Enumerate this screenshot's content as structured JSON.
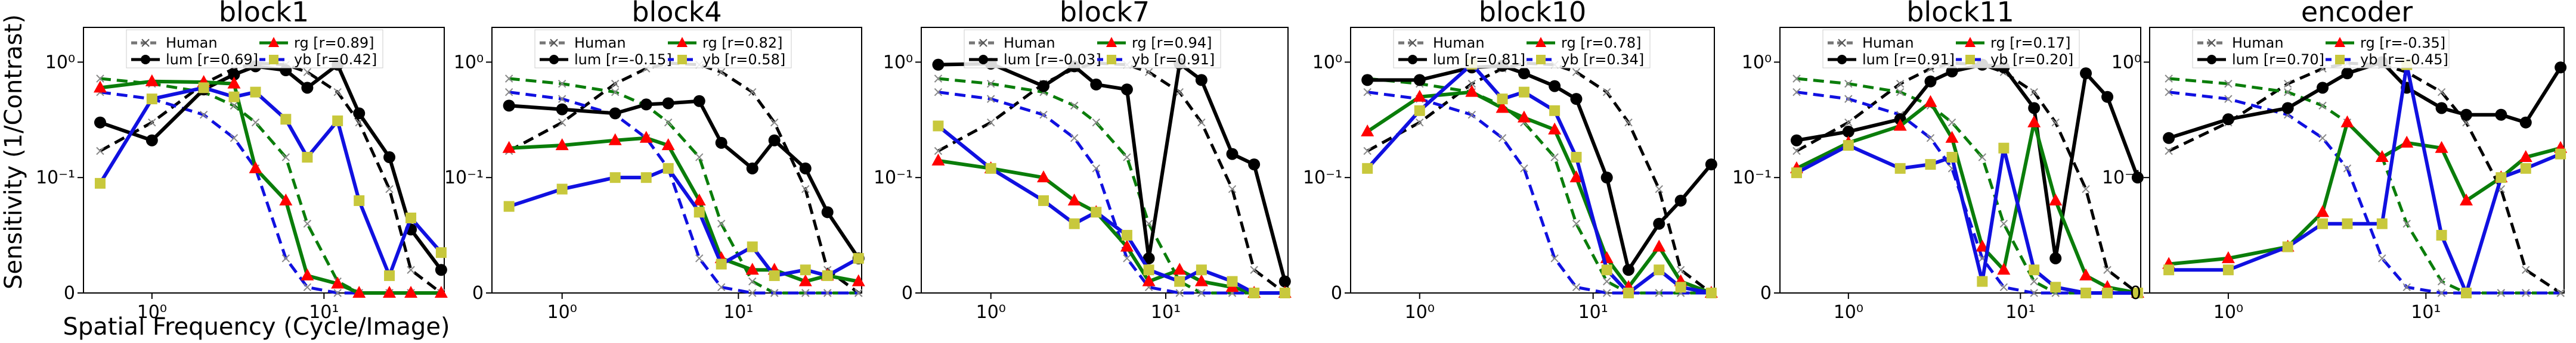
{
  "figure": {
    "ylabel": "Sensitivity (1/Contrast)",
    "xlabel": "Spatial Frequency (Cycle/Image)"
  },
  "colors": {
    "Human": "#777777",
    "lum": "#000000",
    "rg": "#0a7d0a",
    "yb": "#1010e0",
    "rg_marker": "#ff0000",
    "yb_marker": "#c8c83c",
    "human_lum": "#000000",
    "human_rg": "#0a7d0a",
    "human_yb": "#1010e0"
  },
  "chart_data": [
    {
      "type": "line",
      "title": "block1",
      "xscale": "log",
      "yscale": "symlog",
      "xlim": [
        0.4,
        50
      ],
      "ylim": [
        0,
        2
      ],
      "x": [
        0.5,
        1,
        2,
        3,
        4,
        6,
        8,
        12,
        16,
        24,
        32,
        48
      ],
      "series": [
        {
          "name": "lum",
          "r": "[r=0.69]",
          "values": [
            0.3,
            0.21,
            0.58,
            0.78,
            0.92,
            0.85,
            0.6,
            0.95,
            0.36,
            0.15,
            0.055,
            0.02
          ]
        },
        {
          "name": "rg",
          "r": "[r=0.89]",
          "values": [
            0.6,
            0.68,
            0.67,
            0.65,
            0.12,
            0.08,
            0.015,
            0.008,
            0.0,
            0.0,
            0.0,
            0.0
          ]
        },
        {
          "name": "yb",
          "r": "[r=0.42]",
          "values": [
            0.095,
            0.48,
            0.6,
            0.5,
            0.55,
            0.32,
            0.15,
            0.31,
            0.08,
            0.015,
            0.065,
            0.035
          ]
        }
      ],
      "human": {
        "label": "Human",
        "x": [
          0.5,
          1,
          2,
          3,
          4,
          6,
          8,
          12,
          16,
          24,
          32,
          48
        ],
        "lum": [
          0.17,
          0.3,
          0.65,
          0.88,
          0.98,
          0.95,
          0.82,
          0.55,
          0.3,
          0.09,
          0.02,
          0.0
        ],
        "rg": [
          0.72,
          0.65,
          0.55,
          0.42,
          0.3,
          0.15,
          0.06,
          0.01,
          0.0,
          0.0,
          0.0,
          0.0
        ],
        "yb": [
          0.55,
          0.48,
          0.35,
          0.22,
          0.12,
          0.03,
          0.005,
          0.0,
          0.0,
          0.0,
          0.0,
          0.0
        ]
      },
      "legend": {
        "position": "top",
        "entries": [
          "Human",
          "lum [r=0.69]",
          "rg [r=0.89]",
          "yb [r=0.42]"
        ]
      }
    },
    {
      "type": "line",
      "title": "block4",
      "xscale": "log",
      "yscale": "symlog",
      "xlim": [
        0.4,
        50
      ],
      "ylim": [
        0,
        2
      ],
      "x": [
        0.5,
        1,
        2,
        3,
        4,
        6,
        8,
        12,
        16,
        24,
        32,
        48
      ],
      "series": [
        {
          "name": "lum",
          "r": "[r=-0.15]",
          "values": [
            0.42,
            0.39,
            0.36,
            0.43,
            0.44,
            0.46,
            0.2,
            0.12,
            0.21,
            0.12,
            0.07,
            0.03
          ]
        },
        {
          "name": "rg",
          "r": "[r=0.82]",
          "values": [
            0.18,
            0.19,
            0.21,
            0.22,
            0.19,
            0.08,
            0.03,
            0.02,
            0.02,
            0.01,
            0.015,
            0.01
          ]
        },
        {
          "name": "yb",
          "r": "[r=0.58]",
          "values": [
            0.075,
            0.09,
            0.1,
            0.1,
            0.12,
            0.07,
            0.025,
            0.04,
            0.015,
            0.02,
            0.015,
            0.03
          ]
        }
      ],
      "human": {
        "label": "Human",
        "x": [
          0.5,
          1,
          2,
          3,
          4,
          6,
          8,
          12,
          16,
          24,
          32,
          48
        ],
        "lum": [
          0.17,
          0.3,
          0.65,
          0.88,
          0.98,
          0.95,
          0.82,
          0.55,
          0.3,
          0.09,
          0.02,
          0.0
        ],
        "rg": [
          0.72,
          0.65,
          0.55,
          0.42,
          0.3,
          0.15,
          0.06,
          0.01,
          0.0,
          0.0,
          0.0,
          0.0
        ],
        "yb": [
          0.55,
          0.48,
          0.35,
          0.22,
          0.12,
          0.03,
          0.005,
          0.0,
          0.0,
          0.0,
          0.0,
          0.0
        ]
      },
      "legend": {
        "position": "top",
        "entries": [
          "Human",
          "lum [r=-0.15]",
          "rg [r=0.82]",
          "yb [r=0.58]"
        ]
      }
    },
    {
      "type": "line",
      "title": "block7",
      "xscale": "log",
      "yscale": "symlog",
      "xlim": [
        0.4,
        50
      ],
      "ylim": [
        0,
        2
      ],
      "x": [
        0.5,
        1,
        2,
        3,
        4,
        6,
        8,
        12,
        16,
        24,
        32,
        48
      ],
      "series": [
        {
          "name": "lum",
          "r": "[r=-0.03]",
          "values": [
            0.95,
            0.97,
            0.62,
            0.92,
            0.64,
            0.58,
            0.03,
            0.97,
            0.7,
            0.16,
            0.13,
            0.01
          ]
        },
        {
          "name": "rg",
          "r": "[r=0.94]",
          "values": [
            0.14,
            0.12,
            0.1,
            0.08,
            0.07,
            0.04,
            0.01,
            0.02,
            0.01,
            0.005,
            0.0,
            0.0
          ]
        },
        {
          "name": "yb",
          "r": "[r=0.91]",
          "values": [
            0.28,
            0.12,
            0.08,
            0.06,
            0.07,
            0.05,
            0.02,
            0.01,
            0.02,
            0.01,
            0.0,
            0.0
          ]
        }
      ],
      "human": {
        "label": "Human",
        "x": [
          0.5,
          1,
          2,
          3,
          4,
          6,
          8,
          12,
          16,
          24,
          32,
          48
        ],
        "lum": [
          0.17,
          0.3,
          0.65,
          0.88,
          0.98,
          0.95,
          0.82,
          0.55,
          0.3,
          0.09,
          0.02,
          0.0
        ],
        "rg": [
          0.72,
          0.65,
          0.55,
          0.42,
          0.3,
          0.15,
          0.06,
          0.01,
          0.0,
          0.0,
          0.0,
          0.0
        ],
        "yb": [
          0.55,
          0.48,
          0.35,
          0.22,
          0.12,
          0.03,
          0.005,
          0.0,
          0.0,
          0.0,
          0.0,
          0.0
        ]
      },
      "legend": {
        "position": "top",
        "entries": [
          "Human",
          "lum [r=-0.03]",
          "rg [r=0.94]",
          "yb [r=0.91]"
        ]
      }
    },
    {
      "type": "line",
      "title": "block10",
      "xscale": "log",
      "yscale": "symlog",
      "xlim": [
        0.4,
        50
      ],
      "ylim": [
        0,
        2
      ],
      "x": [
        0.5,
        1,
        2,
        3,
        4,
        6,
        8,
        12,
        16,
        24,
        32,
        48
      ],
      "series": [
        {
          "name": "lum",
          "r": "[r=0.81]",
          "values": [
            0.7,
            0.7,
            0.9,
            0.93,
            0.8,
            0.62,
            0.48,
            0.1,
            0.02,
            0.06,
            0.08,
            0.13
          ]
        },
        {
          "name": "rg",
          "r": "[r=0.78]",
          "values": [
            0.25,
            0.5,
            0.55,
            0.4,
            0.33,
            0.26,
            0.1,
            0.03,
            0.005,
            0.04,
            0.01,
            0.0
          ]
        },
        {
          "name": "yb",
          "r": "[r=0.34]",
          "values": [
            0.12,
            0.38,
            0.96,
            0.48,
            0.55,
            0.38,
            0.15,
            0.02,
            0.0,
            0.02,
            0.005,
            0.0
          ]
        }
      ],
      "human": {
        "label": "Human",
        "x": [
          0.5,
          1,
          2,
          3,
          4,
          6,
          8,
          12,
          16,
          24,
          32,
          48
        ],
        "lum": [
          0.17,
          0.3,
          0.65,
          0.88,
          0.98,
          0.95,
          0.82,
          0.55,
          0.3,
          0.09,
          0.02,
          0.0
        ],
        "rg": [
          0.72,
          0.65,
          0.55,
          0.42,
          0.3,
          0.15,
          0.06,
          0.01,
          0.0,
          0.0,
          0.0,
          0.0
        ],
        "yb": [
          0.55,
          0.48,
          0.35,
          0.22,
          0.12,
          0.03,
          0.005,
          0.0,
          0.0,
          0.0,
          0.0,
          0.0
        ]
      },
      "legend": {
        "position": "top",
        "entries": [
          "Human",
          "lum [r=0.81]",
          "rg [r=0.78]",
          "yb [r=0.34]"
        ]
      }
    },
    {
      "type": "line",
      "title": "block11",
      "xscale": "log",
      "yscale": "symlog",
      "xlim": [
        0.4,
        50
      ],
      "ylim": [
        0,
        2
      ],
      "x": [
        0.5,
        1,
        2,
        3,
        4,
        6,
        8,
        12,
        16,
        24,
        32,
        48
      ],
      "series": [
        {
          "name": "lum",
          "r": "[r=0.91]",
          "values": [
            0.21,
            0.25,
            0.32,
            0.68,
            0.83,
            0.95,
            0.9,
            0.4,
            0.03,
            0.8,
            0.5,
            0.1
          ]
        },
        {
          "name": "rg",
          "r": "[r=0.17]",
          "values": [
            0.12,
            0.2,
            0.28,
            0.45,
            0.22,
            0.04,
            0.02,
            0.3,
            0.08,
            0.015,
            0.005,
            0.0
          ]
        },
        {
          "name": "yb",
          "r": "[r=0.20]",
          "values": [
            0.11,
            0.19,
            0.12,
            0.13,
            0.15,
            0.01,
            0.18,
            0.02,
            0.005,
            0.0,
            0.0,
            0.0
          ]
        }
      ],
      "human": {
        "label": "Human",
        "x": [
          0.5,
          1,
          2,
          3,
          4,
          6,
          8,
          12,
          16,
          24,
          32,
          48
        ],
        "lum": [
          0.17,
          0.3,
          0.65,
          0.88,
          0.98,
          0.95,
          0.82,
          0.55,
          0.3,
          0.09,
          0.02,
          0.0
        ],
        "rg": [
          0.72,
          0.65,
          0.55,
          0.42,
          0.3,
          0.15,
          0.06,
          0.01,
          0.0,
          0.0,
          0.0,
          0.0
        ],
        "yb": [
          0.55,
          0.48,
          0.35,
          0.22,
          0.12,
          0.03,
          0.005,
          0.0,
          0.0,
          0.0,
          0.0,
          0.0
        ]
      },
      "legend": {
        "position": "top",
        "entries": [
          "Human",
          "lum [r=0.91]",
          "rg [r=0.17]",
          "yb [r=0.20]"
        ]
      }
    },
    {
      "type": "line",
      "title": "encoder",
      "xscale": "log",
      "yscale": "symlog",
      "xlim": [
        0.4,
        50
      ],
      "ylim": [
        0,
        2
      ],
      "x": [
        0.5,
        1,
        2,
        3,
        4,
        6,
        8,
        12,
        16,
        24,
        32,
        48
      ],
      "series": [
        {
          "name": "lum",
          "r": "[r=0.70]",
          "values": [
            0.22,
            0.32,
            0.4,
            0.6,
            0.8,
            1.0,
            0.6,
            0.4,
            0.35,
            0.35,
            0.3,
            0.9
          ]
        },
        {
          "name": "rg",
          "r": "[r=-0.35]",
          "values": [
            0.025,
            0.03,
            0.04,
            0.07,
            0.3,
            0.15,
            0.2,
            0.18,
            0.08,
            0.1,
            0.15,
            0.18
          ]
        },
        {
          "name": "yb",
          "r": "[r=-0.45]",
          "values": [
            0.02,
            0.02,
            0.04,
            0.06,
            0.06,
            0.06,
            0.95,
            0.05,
            0.0,
            0.1,
            0.12,
            0.16
          ]
        }
      ],
      "human": {
        "label": "Human",
        "x": [
          0.5,
          1,
          2,
          3,
          4,
          6,
          8,
          12,
          16,
          24,
          32,
          48
        ],
        "lum": [
          0.17,
          0.3,
          0.65,
          0.88,
          0.98,
          0.95,
          0.82,
          0.55,
          0.3,
          0.09,
          0.02,
          0.0
        ],
        "rg": [
          0.72,
          0.65,
          0.55,
          0.42,
          0.3,
          0.15,
          0.06,
          0.01,
          0.0,
          0.0,
          0.0,
          0.0
        ],
        "yb": [
          0.55,
          0.48,
          0.35,
          0.22,
          0.12,
          0.03,
          0.005,
          0.0,
          0.0,
          0.0,
          0.0,
          0.0
        ]
      },
      "legend": {
        "position": "top",
        "entries": [
          "Human",
          "lum [r=0.70]",
          "rg [r=-0.35]",
          "yb [r=-0.45]"
        ]
      }
    }
  ],
  "axis_ticks": {
    "x": [
      {
        "v": 1,
        "label": "10⁰"
      },
      {
        "v": 10,
        "label": "10¹"
      }
    ],
    "y": [
      {
        "v": 0,
        "label": "0"
      },
      {
        "v": 0.1,
        "label": "10⁻¹"
      },
      {
        "v": 1,
        "label": "10⁰"
      }
    ]
  }
}
